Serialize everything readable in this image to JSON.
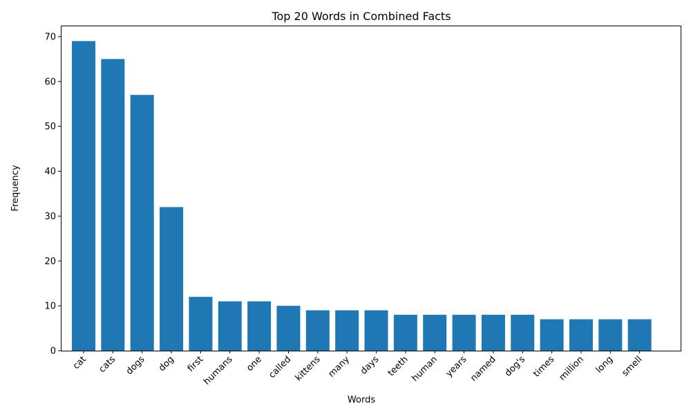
{
  "chart_data": {
    "type": "bar",
    "title": "Top 20 Words in Combined Facts",
    "xlabel": "Words",
    "ylabel": "Frequency",
    "categories": [
      "cat",
      "cats",
      "dogs",
      "dog",
      "first",
      "humans",
      "one",
      "called",
      "kittens",
      "many",
      "days",
      "teeth",
      "human",
      "years",
      "named",
      "dog's",
      "times",
      "million",
      "long",
      "smell"
    ],
    "values": [
      69,
      65,
      57,
      32,
      12,
      11,
      11,
      10,
      9,
      9,
      9,
      8,
      8,
      8,
      8,
      8,
      7,
      7,
      7,
      7
    ],
    "ylim": [
      0,
      72.45
    ],
    "yticks": [
      0,
      10,
      20,
      30,
      40,
      50,
      60,
      70
    ],
    "bar_color": "#1f77b4",
    "grid": false,
    "legend": "none",
    "xtick_rotation": 45
  }
}
